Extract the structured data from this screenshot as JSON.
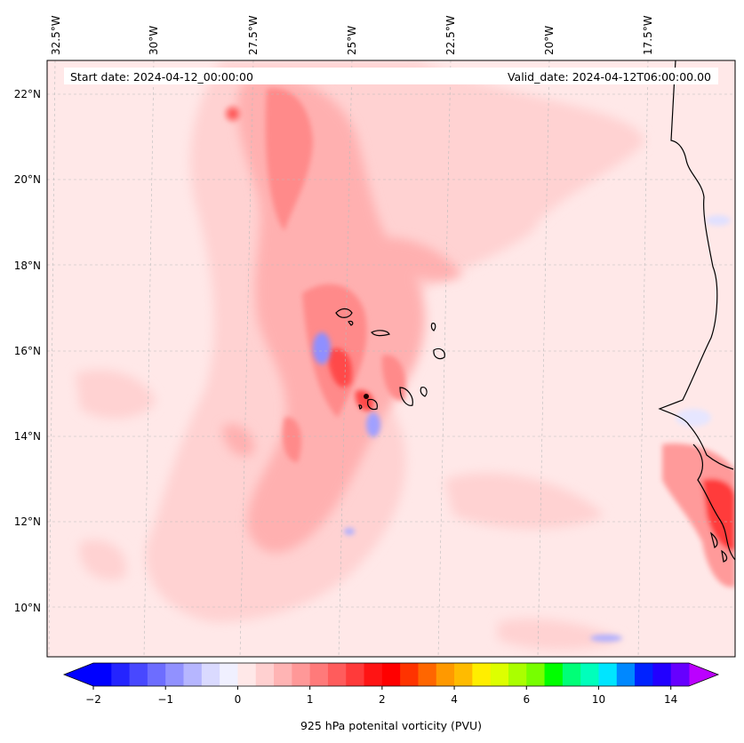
{
  "header": {
    "start_date": "Start date: 2024-04-12_00:00:00",
    "valid_date": "Valid_date: 2024-04-12T06:00:00.00"
  },
  "lon_labels": [
    "32.5°W",
    "30°W",
    "27.5°W",
    "25°W",
    "22.5°W",
    "20°W",
    "17.5°W"
  ],
  "lat_labels": [
    "22°N",
    "20°N",
    "18°N",
    "16°N",
    "14°N",
    "12°N",
    "10°N"
  ],
  "colorbar": {
    "label": "925 hPa potenital vorticity (PVU)",
    "tick_labels": [
      "−2",
      "−1",
      "0",
      "1",
      "2",
      "4",
      "6",
      "10",
      "14"
    ],
    "tick_values": [
      -2,
      -1,
      0,
      1,
      2,
      4,
      6,
      10,
      14
    ],
    "levels": [
      -2,
      -1.75,
      -1.5,
      -1.25,
      -1,
      -0.75,
      -0.5,
      -0.25,
      0,
      0.25,
      0.5,
      0.75,
      1,
      1.25,
      1.5,
      1.75,
      2,
      2.5,
      3,
      3.5,
      4,
      4.5,
      5,
      5.5,
      6,
      7,
      8,
      9,
      10,
      11,
      12,
      13,
      14
    ],
    "colors": [
      "#0000ff",
      "#2424ff",
      "#4848ff",
      "#6d6dff",
      "#9191ff",
      "#b6b6ff",
      "#dadaff",
      "#f0f0ff",
      "#ffe8e8",
      "#ffd0d0",
      "#ffb4b4",
      "#ff9898",
      "#ff7a7a",
      "#ff5c5c",
      "#ff3a3a",
      "#ff1414",
      "#ff0000",
      "#ff3300",
      "#ff6600",
      "#ff9900",
      "#ffbb00",
      "#ffee00",
      "#ddff00",
      "#aaff00",
      "#77ff00",
      "#00ff00",
      "#00ff77",
      "#00ffbb",
      "#00e5ff",
      "#0088ff",
      "#0022ff",
      "#2200ff",
      "#6600ff"
    ],
    "extend_min_color": "#0000ff",
    "extend_max_color": "#bb00ff"
  },
  "map": {
    "background_color": "#ffe8e8",
    "coastline_color": "#000000",
    "gridline_color": "#bbbbbb"
  }
}
